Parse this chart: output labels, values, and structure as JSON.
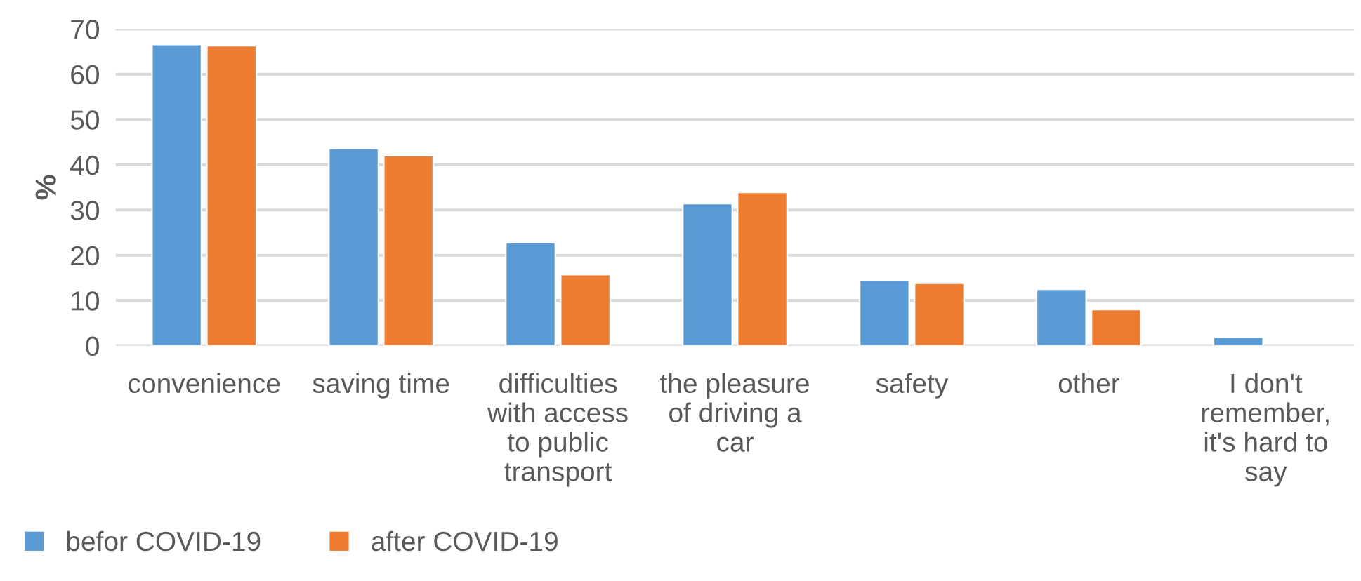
{
  "chart_data": {
    "type": "bar",
    "ylabel": "%",
    "categories": [
      "convenience",
      "saving time",
      "difficulties\nwith access\nto public\ntransport",
      "the pleasure\nof driving a\ncar",
      "safety",
      "other",
      "I don't\nremember,\nit's hard to\nsay"
    ],
    "series": [
      {
        "name": "befor COVID-19",
        "color": "#5b9bd5",
        "values": [
          66.6,
          43.6,
          22.8,
          31.4,
          14.5,
          12.5,
          1.9
        ]
      },
      {
        "name": "after COVID-19",
        "color": "#ed7d31",
        "values": [
          66.3,
          42.0,
          15.7,
          33.9,
          13.8,
          8.0,
          null
        ]
      }
    ],
    "ylim": [
      0,
      70
    ],
    "yticks": [
      0,
      10,
      20,
      30,
      40,
      50,
      60,
      70
    ],
    "grid": "y",
    "legend": "bottom left"
  }
}
